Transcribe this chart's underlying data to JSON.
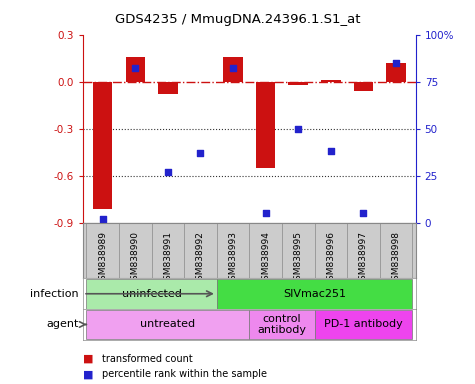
{
  "title": "GDS4235 / MmugDNA.24396.1.S1_at",
  "samples": [
    "GSM838989",
    "GSM838990",
    "GSM838991",
    "GSM838992",
    "GSM838993",
    "GSM838994",
    "GSM838995",
    "GSM838996",
    "GSM838997",
    "GSM838998"
  ],
  "transformed_count": [
    -0.81,
    0.16,
    -0.08,
    0.0,
    0.16,
    -0.55,
    -0.02,
    0.01,
    -0.06,
    0.12
  ],
  "percentile_rank": [
    2,
    82,
    27,
    37,
    82,
    5,
    50,
    38,
    5,
    85
  ],
  "ylim_left": [
    -0.9,
    0.3
  ],
  "ylim_right": [
    0,
    100
  ],
  "yticks_left": [
    -0.9,
    -0.6,
    -0.3,
    0.0,
    0.3
  ],
  "yticks_right": [
    0,
    25,
    50,
    75,
    100
  ],
  "infection_groups": [
    {
      "label": "uninfected",
      "start": 0,
      "end": 4,
      "color": "#AAEAAA"
    },
    {
      "label": "SIVmac251",
      "start": 4,
      "end": 10,
      "color": "#44DD44"
    }
  ],
  "agent_groups": [
    {
      "label": "untreated",
      "start": 0,
      "end": 5,
      "color": "#F0A0F0"
    },
    {
      "label": "control\nantibody",
      "start": 5,
      "end": 7,
      "color": "#EE88EE"
    },
    {
      "label": "PD-1 antibody",
      "start": 7,
      "end": 10,
      "color": "#EE44EE"
    }
  ],
  "bar_color": "#CC1111",
  "dot_color": "#2222CC",
  "hline_color": "#CC1111",
  "dotted_line_color": "#333333",
  "bg_color": "#FFFFFF",
  "label_bg_color": "#CCCCCC",
  "legend_items": [
    {
      "label": "transformed count",
      "color": "#CC1111"
    },
    {
      "label": "percentile rank within the sample",
      "color": "#2222CC"
    }
  ],
  "infection_label": "infection",
  "agent_label": "agent"
}
